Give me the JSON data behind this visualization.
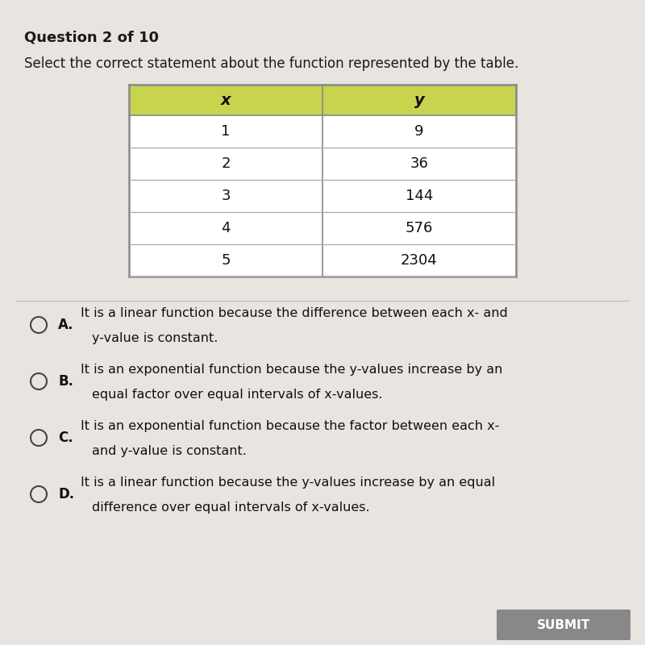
{
  "title_bold": "Question 2 of 10",
  "subtitle": "Select the correct statement about the function represented by the table.",
  "table_headers": [
    "x",
    "y"
  ],
  "table_data": [
    [
      "1",
      "9"
    ],
    [
      "2",
      "36"
    ],
    [
      "3",
      "144"
    ],
    [
      "4",
      "576"
    ],
    [
      "5",
      "2304"
    ]
  ],
  "header_bg_color": "#c8d44e",
  "table_border_color": "#888888",
  "row_bg_color": "#ffffff",
  "row_line_color": "#aaaaaa",
  "bg_color": "#d8d4d0",
  "text_color": "#222222",
  "submit_btn_color": "#888888",
  "submit_btn_text": "SUBMIT",
  "option_labels": [
    "A.",
    "B.",
    "C.",
    "D."
  ],
  "option_lines": [
    [
      "It is a linear function because the difference between each ",
      "x",
      "- and",
      "",
      "y",
      "-value is constant."
    ],
    [
      "It is an exponential function because the ",
      "y",
      "-values increase by an",
      "equal factor over equal intervals of ",
      "x",
      "-values."
    ],
    [
      "It is an exponential function because the factor between each ",
      "x",
      "-",
      "and ",
      "y",
      "-value is constant."
    ],
    [
      "It is a linear function because the ",
      "y",
      "-values increase by an equal",
      "difference over equal intervals of ",
      "x",
      "-values."
    ]
  ],
  "figsize": [
    8.0,
    8.0
  ],
  "dpi": 100
}
